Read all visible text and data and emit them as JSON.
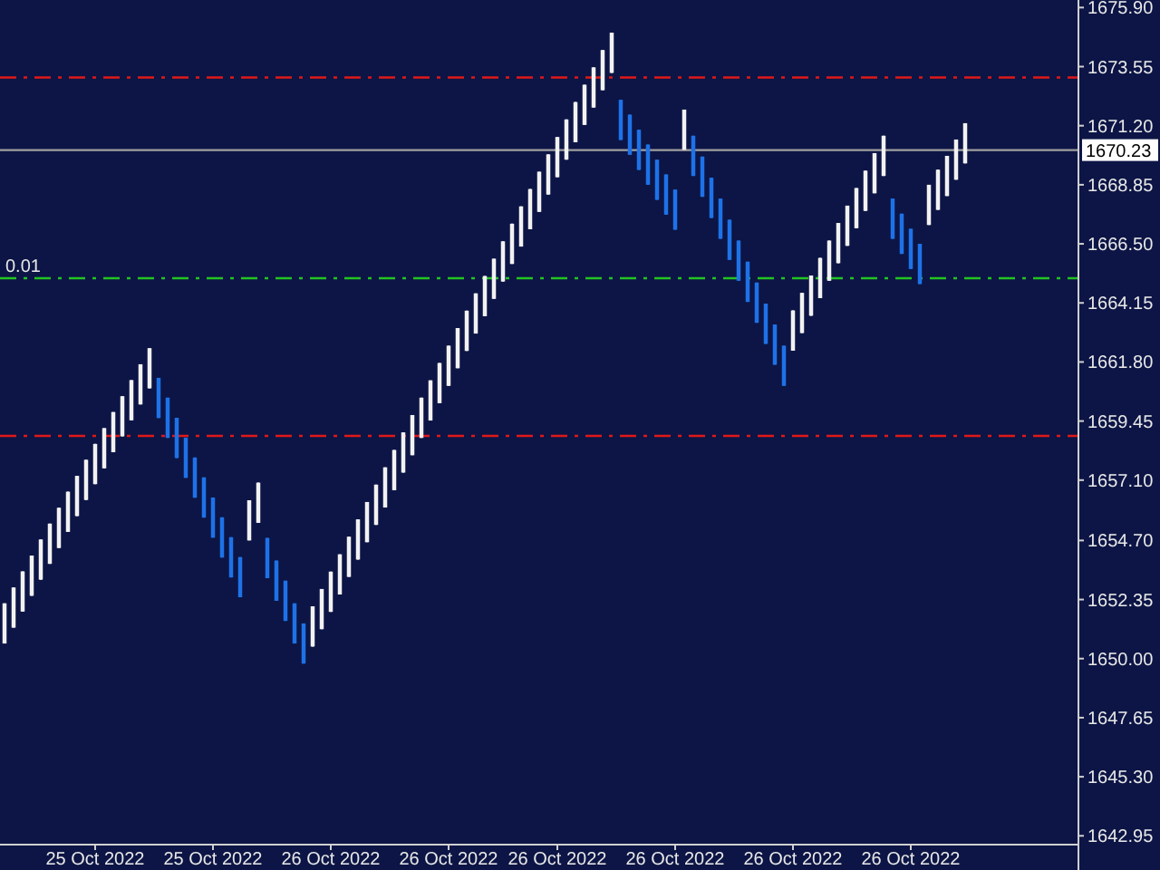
{
  "chart_data": {
    "type": "candlestick",
    "categories": [
      null,
      null,
      null,
      null,
      null,
      null,
      null,
      null,
      null,
      null,
      "25 Oct 2022",
      null,
      null,
      null,
      null,
      null,
      null,
      null,
      null,
      null,
      null,
      null,
      null,
      "25 Oct 2022",
      null,
      null,
      null,
      null,
      null,
      null,
      null,
      null,
      null,
      null,
      null,
      null,
      "26 Oct 2022",
      null,
      null,
      null,
      null,
      null,
      null,
      null,
      null,
      null,
      null,
      null,
      null,
      "26 Oct 2022",
      null,
      null,
      null,
      null,
      null,
      null,
      null,
      null,
      null,
      null,
      null,
      "26 Oct 2022",
      null,
      null,
      null,
      null,
      null,
      null,
      null,
      null,
      null,
      null,
      null,
      null,
      "26 Oct 2022",
      null,
      null,
      null,
      null,
      null,
      null,
      null,
      null,
      null,
      null,
      null,
      null,
      "26 Oct 2022",
      null,
      null,
      null,
      null,
      null,
      null,
      null,
      null,
      null,
      null,
      null,
      null,
      "26 Oct 2022",
      null,
      null,
      null,
      null,
      null,
      null,
      null,
      null,
      null,
      null,
      null,
      null,
      null,
      null,
      null,
      null,
      null,
      null
    ],
    "ohlc": [
      [
        1650.6,
        1652.2,
        1650.6,
        1652.2
      ],
      [
        1651.23,
        1652.83,
        1651.23,
        1652.83
      ],
      [
        1651.87,
        1653.47,
        1651.87,
        1653.47
      ],
      [
        1652.5,
        1654.1,
        1652.5,
        1654.1
      ],
      [
        1653.14,
        1654.74,
        1653.14,
        1654.74
      ],
      [
        1653.77,
        1655.37,
        1653.77,
        1655.37
      ],
      [
        1654.4,
        1656.0,
        1654.4,
        1656.0
      ],
      [
        1655.04,
        1656.64,
        1655.04,
        1656.64
      ],
      [
        1655.67,
        1657.27,
        1655.67,
        1657.27
      ],
      [
        1656.31,
        1657.91,
        1656.31,
        1657.91
      ],
      [
        1656.94,
        1658.54,
        1656.94,
        1658.54
      ],
      [
        1657.57,
        1659.17,
        1657.57,
        1659.17
      ],
      [
        1658.21,
        1659.81,
        1658.21,
        1659.81
      ],
      [
        1658.84,
        1660.44,
        1658.84,
        1660.44
      ],
      [
        1659.48,
        1661.08,
        1659.48,
        1661.08
      ],
      [
        1660.11,
        1661.71,
        1660.11,
        1661.71
      ],
      [
        1660.75,
        1662.35,
        1660.75,
        1662.35
      ],
      [
        1661.17,
        1661.17,
        1659.57,
        1659.57
      ],
      [
        1660.38,
        1660.38,
        1658.78,
        1658.78
      ],
      [
        1659.58,
        1659.58,
        1657.98,
        1657.98
      ],
      [
        1658.79,
        1658.79,
        1657.19,
        1657.19
      ],
      [
        1658.0,
        1658.0,
        1656.4,
        1656.4
      ],
      [
        1657.21,
        1657.21,
        1655.61,
        1655.61
      ],
      [
        1656.41,
        1656.41,
        1654.81,
        1654.81
      ],
      [
        1655.62,
        1655.62,
        1654.02,
        1654.02
      ],
      [
        1654.83,
        1654.83,
        1653.23,
        1653.23
      ],
      [
        1654.04,
        1654.04,
        1652.44,
        1652.44
      ],
      [
        1654.7,
        1656.3,
        1654.7,
        1656.3
      ],
      [
        1655.4,
        1657.0,
        1655.4,
        1657.0
      ],
      [
        1654.8,
        1654.8,
        1653.2,
        1653.2
      ],
      [
        1653.9,
        1653.9,
        1652.3,
        1652.3
      ],
      [
        1653.1,
        1653.1,
        1651.5,
        1651.5
      ],
      [
        1652.2,
        1652.2,
        1650.6,
        1650.6
      ],
      [
        1651.4,
        1651.4,
        1649.8,
        1649.8
      ],
      [
        1650.48,
        1652.08,
        1650.48,
        1652.08
      ],
      [
        1651.17,
        1652.77,
        1651.17,
        1652.77
      ],
      [
        1651.86,
        1653.46,
        1651.86,
        1653.46
      ],
      [
        1652.55,
        1654.15,
        1652.55,
        1654.15
      ],
      [
        1653.25,
        1654.85,
        1653.25,
        1654.85
      ],
      [
        1653.94,
        1655.54,
        1653.94,
        1655.54
      ],
      [
        1654.63,
        1656.23,
        1654.63,
        1656.23
      ],
      [
        1655.32,
        1656.92,
        1655.32,
        1656.92
      ],
      [
        1656.01,
        1657.61,
        1656.01,
        1657.61
      ],
      [
        1656.7,
        1658.3,
        1656.7,
        1658.3
      ],
      [
        1657.4,
        1659.0,
        1657.4,
        1659.0
      ],
      [
        1658.09,
        1659.69,
        1658.09,
        1659.69
      ],
      [
        1658.78,
        1660.38,
        1658.78,
        1660.38
      ],
      [
        1659.47,
        1661.07,
        1659.47,
        1661.07
      ],
      [
        1660.16,
        1661.76,
        1660.16,
        1661.76
      ],
      [
        1660.85,
        1662.45,
        1660.85,
        1662.45
      ],
      [
        1661.55,
        1663.15,
        1661.55,
        1663.15
      ],
      [
        1662.24,
        1663.84,
        1662.24,
        1663.84
      ],
      [
        1662.93,
        1664.53,
        1662.93,
        1664.53
      ],
      [
        1663.62,
        1665.22,
        1663.62,
        1665.22
      ],
      [
        1664.31,
        1665.91,
        1664.31,
        1665.91
      ],
      [
        1665.0,
        1666.6,
        1665.0,
        1666.6
      ],
      [
        1665.7,
        1667.3,
        1665.7,
        1667.3
      ],
      [
        1666.39,
        1667.99,
        1666.39,
        1667.99
      ],
      [
        1667.08,
        1668.68,
        1667.08,
        1668.68
      ],
      [
        1667.77,
        1669.37,
        1667.77,
        1669.37
      ],
      [
        1668.46,
        1670.06,
        1668.46,
        1670.06
      ],
      [
        1669.15,
        1670.75,
        1669.15,
        1670.75
      ],
      [
        1669.85,
        1671.45,
        1669.85,
        1671.45
      ],
      [
        1670.54,
        1672.14,
        1670.54,
        1672.14
      ],
      [
        1671.23,
        1672.83,
        1671.23,
        1672.83
      ],
      [
        1671.92,
        1673.52,
        1671.92,
        1673.52
      ],
      [
        1672.61,
        1674.21,
        1672.61,
        1674.21
      ],
      [
        1673.3,
        1674.9,
        1673.3,
        1674.9
      ],
      [
        1672.23,
        1672.23,
        1670.63,
        1670.63
      ],
      [
        1671.64,
        1671.64,
        1670.04,
        1670.04
      ],
      [
        1671.04,
        1671.04,
        1669.44,
        1669.44
      ],
      [
        1670.45,
        1670.45,
        1668.85,
        1668.85
      ],
      [
        1669.85,
        1669.85,
        1668.25,
        1668.25
      ],
      [
        1669.26,
        1669.26,
        1667.66,
        1667.66
      ],
      [
        1668.66,
        1668.66,
        1667.06,
        1667.06
      ],
      [
        1670.24,
        1671.84,
        1670.24,
        1671.84
      ],
      [
        1670.8,
        1670.8,
        1669.2,
        1669.2
      ],
      [
        1669.97,
        1669.97,
        1668.37,
        1668.37
      ],
      [
        1669.13,
        1669.13,
        1667.53,
        1667.53
      ],
      [
        1668.3,
        1668.3,
        1666.7,
        1666.7
      ],
      [
        1667.46,
        1667.46,
        1665.86,
        1665.86
      ],
      [
        1666.63,
        1666.63,
        1665.03,
        1665.03
      ],
      [
        1665.79,
        1665.79,
        1664.19,
        1664.19
      ],
      [
        1664.96,
        1664.96,
        1663.36,
        1663.36
      ],
      [
        1664.12,
        1664.12,
        1662.52,
        1662.52
      ],
      [
        1663.29,
        1663.29,
        1661.69,
        1661.69
      ],
      [
        1662.45,
        1662.45,
        1660.85,
        1660.85
      ],
      [
        1662.25,
        1663.85,
        1662.25,
        1663.85
      ],
      [
        1662.95,
        1664.55,
        1662.95,
        1664.55
      ],
      [
        1663.64,
        1665.24,
        1663.64,
        1665.24
      ],
      [
        1664.34,
        1665.94,
        1664.34,
        1665.94
      ],
      [
        1665.03,
        1666.63,
        1665.03,
        1666.63
      ],
      [
        1665.73,
        1667.33,
        1665.73,
        1667.33
      ],
      [
        1666.42,
        1668.02,
        1666.42,
        1668.02
      ],
      [
        1667.12,
        1668.72,
        1667.12,
        1668.72
      ],
      [
        1667.81,
        1669.41,
        1667.81,
        1669.41
      ],
      [
        1668.51,
        1670.11,
        1668.51,
        1670.11
      ],
      [
        1669.2,
        1670.8,
        1669.2,
        1670.8
      ],
      [
        1668.3,
        1668.3,
        1666.7,
        1666.7
      ],
      [
        1667.7,
        1667.7,
        1666.1,
        1666.1
      ],
      [
        1667.1,
        1667.1,
        1665.5,
        1665.5
      ],
      [
        1666.5,
        1666.5,
        1664.9,
        1664.9
      ],
      [
        1667.25,
        1668.85,
        1667.25,
        1668.85
      ],
      [
        1667.85,
        1669.45,
        1667.85,
        1669.45
      ],
      [
        1668.4,
        1670.0,
        1668.4,
        1670.0
      ],
      [
        1669.05,
        1670.65,
        1669.05,
        1670.65
      ],
      [
        1669.7,
        1671.3,
        1669.7,
        1671.3
      ],
      null,
      null,
      null,
      null,
      null,
      null,
      null,
      null,
      null,
      null,
      null,
      null
    ],
    "colors": [
      "#f2f2f2",
      "#f2f2f2",
      "#f2f2f2",
      "#f2f2f2",
      "#f2f2f2",
      "#f2f2f2",
      "#f2f2f2",
      "#f2f2f2",
      "#f2f2f2",
      "#f2f2f2",
      "#f2f2f2",
      "#f2f2f2",
      "#f2f2f2",
      "#f2f2f2",
      "#f2f2f2",
      "#f2f2f2",
      "#f2f2f2",
      "#1e72e8",
      "#1e72e8",
      "#1e72e8",
      "#1e72e8",
      "#1e72e8",
      "#1e72e8",
      "#1e72e8",
      "#1e72e8",
      "#1e72e8",
      "#1e72e8",
      "#f2f2f2",
      "#f2f2f2",
      "#1e72e8",
      "#1e72e8",
      "#1e72e8",
      "#1e72e8",
      "#1e72e8",
      "#f2f2f2",
      "#f2f2f2",
      "#f2f2f2",
      "#f2f2f2",
      "#f2f2f2",
      "#f2f2f2",
      "#f2f2f2",
      "#f2f2f2",
      "#f2f2f2",
      "#f2f2f2",
      "#f2f2f2",
      "#f2f2f2",
      "#f2f2f2",
      "#f2f2f2",
      "#f2f2f2",
      "#f2f2f2",
      "#f2f2f2",
      "#f2f2f2",
      "#f2f2f2",
      "#f2f2f2",
      "#f2f2f2",
      "#f2f2f2",
      "#f2f2f2",
      "#f2f2f2",
      "#f2f2f2",
      "#f2f2f2",
      "#f2f2f2",
      "#f2f2f2",
      "#f2f2f2",
      "#f2f2f2",
      "#f2f2f2",
      "#f2f2f2",
      "#f2f2f2",
      "#f2f2f2",
      "#1e72e8",
      "#1e72e8",
      "#1e72e8",
      "#1e72e8",
      "#1e72e8",
      "#1e72e8",
      "#1e72e8",
      "#f2f2f2",
      "#1e72e8",
      "#1e72e8",
      "#1e72e8",
      "#1e72e8",
      "#1e72e8",
      "#1e72e8",
      "#1e72e8",
      "#1e72e8",
      "#1e72e8",
      "#1e72e8",
      "#1e72e8",
      "#f2f2f2",
      "#f2f2f2",
      "#f2f2f2",
      "#f2f2f2",
      "#f2f2f2",
      "#f2f2f2",
      "#f2f2f2",
      "#f2f2f2",
      "#f2f2f2",
      "#f2f2f2",
      "#f2f2f2",
      "#1e72e8",
      "#1e72e8",
      "#1e72e8",
      "#1e72e8",
      "#f2f2f2",
      "#f2f2f2",
      "#f2f2f2",
      "#f2f2f2",
      "#f2f2f2",
      null,
      null,
      null,
      null,
      null,
      null,
      null,
      null,
      null,
      null,
      null,
      null
    ],
    "ylim": [
      1642.6,
      1676.2
    ],
    "yticks": [
      {
        "value": 1675.9,
        "label": "1675.90"
      },
      {
        "value": 1673.55,
        "label": "1673.55"
      },
      {
        "value": 1671.2,
        "label": "1671.20"
      },
      {
        "value": 1668.85,
        "label": "1668.85"
      },
      {
        "value": 1666.5,
        "label": "1666.50"
      },
      {
        "value": 1664.15,
        "label": "1664.15"
      },
      {
        "value": 1661.8,
        "label": "1661.80"
      },
      {
        "value": 1659.45,
        "label": "1659.45"
      },
      {
        "value": 1657.1,
        "label": "1657.10"
      },
      {
        "value": 1654.7,
        "label": "1654.70"
      },
      {
        "value": 1652.35,
        "label": "1652.35"
      },
      {
        "value": 1650,
        "label": "1650.00"
      },
      {
        "value": 1647.65,
        "label": "1647.65"
      },
      {
        "value": 1645.3,
        "label": "1645.30"
      },
      {
        "value": 1642.95,
        "label": "1642.95"
      }
    ],
    "ref_lines": [
      {
        "axis": "y",
        "value": 1673.12,
        "color": "#e01818",
        "line_style": "dashed"
      },
      {
        "axis": "y",
        "value": 1658.86,
        "color": "#e01818",
        "line_style": "dashed"
      },
      {
        "axis": "y",
        "value": 1665.13,
        "color": "#22c422",
        "line_style": "dashed"
      },
      {
        "axis": "y",
        "value": 1670.23,
        "label": "1670.23",
        "color": "#a0a0a0",
        "line_style": "solid"
      }
    ],
    "annotations": [
      "0.01"
    ],
    "grid": false
  }
}
